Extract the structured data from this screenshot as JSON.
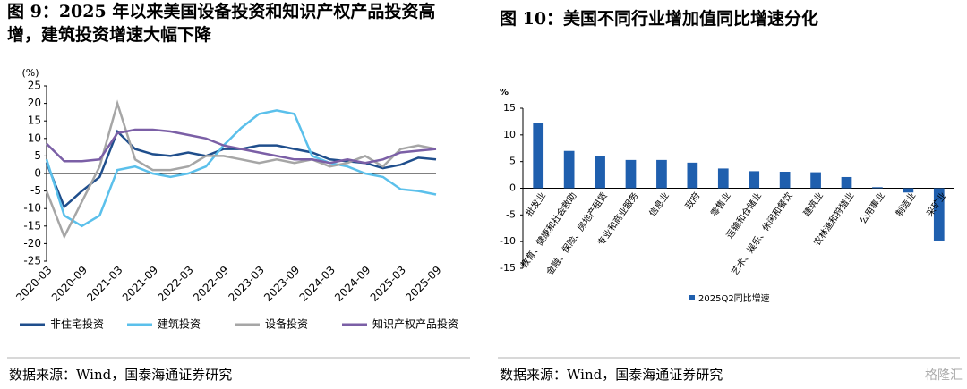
{
  "chart_data": [
    {
      "type": "line",
      "title": "图 9：2025 年以来美国设备投资和知识产权产品投资高增，建筑投资增速大幅下降",
      "y_label": "(%)",
      "categories": [
        "2020-03",
        null,
        "2020-09",
        null,
        "2021-03",
        null,
        "2021-09",
        null,
        "2022-03",
        null,
        "2022-09",
        null,
        "2023-03",
        null,
        "2023-09",
        null,
        "2024-03",
        null,
        "2024-09",
        null,
        "2025-03",
        null,
        "2025-09"
      ],
      "series": [
        {
          "name": "非住宅投资",
          "color": "#1f4e8c",
          "values": [
            3,
            -9.5,
            -5,
            -1,
            12,
            7,
            5.5,
            5,
            6,
            5,
            7,
            7,
            8,
            8,
            7,
            6,
            4,
            3.5,
            3,
            1.5,
            2.5,
            4.5,
            4
          ]
        },
        {
          "name": "建筑投资",
          "color": "#5bc0eb",
          "values": [
            4,
            -12,
            -15,
            -12,
            1,
            2,
            0,
            -1,
            0,
            2,
            8,
            13,
            17,
            18,
            17,
            5,
            3,
            2,
            0,
            -1,
            -4.5,
            -5,
            -6
          ]
        },
        {
          "name": "设备投资",
          "color": "#a6a6a6",
          "values": [
            -5,
            -18,
            -8,
            2,
            20,
            4,
            1,
            1,
            2,
            5,
            5,
            4,
            3,
            4,
            3,
            4,
            2,
            3,
            5,
            2,
            7,
            8,
            7
          ]
        },
        {
          "name": "知识产权产品投资",
          "color": "#7b5fa6",
          "values": [
            8.5,
            3.5,
            3.5,
            4,
            11.5,
            12.5,
            12.5,
            12,
            11,
            10,
            8,
            7,
            6,
            5,
            4,
            4,
            3,
            4,
            3,
            4,
            6,
            6.5,
            7
          ]
        }
      ],
      "ylim": [
        -25,
        25
      ],
      "yticks": [
        -25,
        -20,
        -15,
        -10,
        -5,
        0,
        5,
        10,
        15,
        20,
        25
      ],
      "source": "数据来源：Wind，国泰海通证券研究"
    },
    {
      "type": "bar",
      "title": "图 10：美国不同行业增加值同比增速分化",
      "y_label": "%",
      "categories": [
        "批发业",
        "教育、健康和社会救助",
        "金融、保险、房地产租赁",
        "专业和商业服务",
        "信息业",
        "政府",
        "零售业",
        "运输和仓储业",
        "艺术、娱乐、休闲和餐饮",
        "建筑业",
        "农林渔和狩猎业",
        "公用事业",
        "制造业",
        "采矿业"
      ],
      "series": [
        {
          "name": "2025Q2同比增速",
          "color": "#1f5fae",
          "values": [
            12.2,
            7,
            6,
            5.3,
            5.3,
            4.8,
            3.7,
            3.2,
            3.1,
            3.0,
            2.1,
            0.2,
            -0.8,
            -9.8
          ]
        }
      ],
      "ylim": [
        -15,
        15
      ],
      "yticks": [
        -15,
        -10,
        -5,
        0,
        5,
        10,
        15
      ],
      "source": "数据来源：Wind，国泰海通证券研究"
    }
  ],
  "watermark": "格隆汇"
}
